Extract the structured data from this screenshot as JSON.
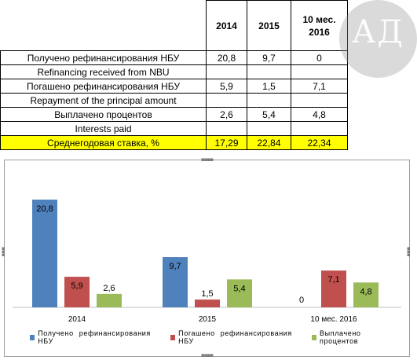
{
  "table": {
    "header": [
      "",
      "2014",
      "2015",
      "10 мес.\n2016"
    ],
    "header_line1": "10 мес.",
    "header_line2": "2016",
    "rows": [
      [
        "Получено рефинансирования НБУ",
        "20,8",
        "9,7",
        "0"
      ],
      [
        "Refinancing received from NBU",
        "",
        "",
        ""
      ],
      [
        "Погашено рефинансирования НБУ",
        "5,9",
        "1,5",
        "7,1"
      ],
      [
        "Repayment of the principal amount",
        "",
        "",
        ""
      ],
      [
        "Выплачено процентов",
        "2,6",
        "5,4",
        "4,8"
      ],
      [
        "Interests paid",
        "",
        "",
        ""
      ],
      [
        "Среднегодовая ставка, %",
        "17,29",
        "22,84",
        "22,34"
      ]
    ]
  },
  "logo": {
    "text": "АД"
  },
  "colors": {
    "series1": "#4f81bd",
    "series2": "#c0504d",
    "series3": "#9bbb59",
    "highlight": "#ffff00"
  },
  "chart_data": {
    "type": "bar",
    "categories": [
      "2014",
      "2015",
      "10 мес. 2016"
    ],
    "series": [
      {
        "name": "Получено рефинансирования НБУ",
        "values": [
          20.8,
          9.7,
          0
        ],
        "labels": [
          "20,8",
          "9,7",
          "0"
        ]
      },
      {
        "name": "Погашено рефинансирования НБУ",
        "values": [
          5.9,
          1.5,
          7.1
        ],
        "labels": [
          "5,9",
          "1,5",
          "7,1"
        ]
      },
      {
        "name": "Выплачено процентов",
        "values": [
          2.6,
          5.4,
          4.8
        ],
        "labels": [
          "2,6",
          "5,4",
          "4,8"
        ]
      }
    ],
    "data_labels": true,
    "legend": "bottom",
    "grid": false,
    "ylim": [
      0,
      22
    ]
  }
}
